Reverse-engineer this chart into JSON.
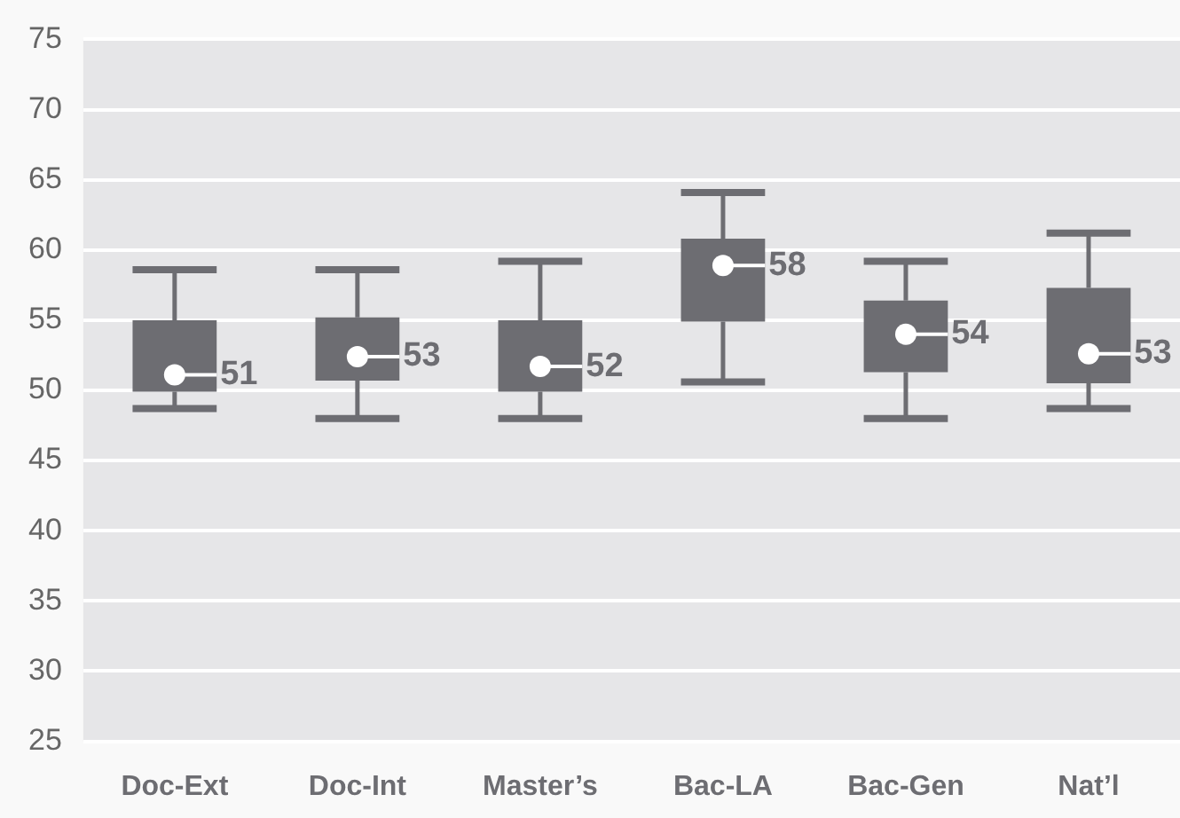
{
  "chart_data": {
    "type": "box",
    "categories": [
      "Doc-Ext",
      "Doc-Int",
      "Master’s",
      "Bac-LA",
      "Bac-Gen",
      "Nat’l"
    ],
    "color": "#6d6d72",
    "ylim": [
      25,
      75
    ],
    "yticks": [
      25,
      30,
      35,
      40,
      45,
      50,
      55,
      60,
      65,
      70,
      75
    ],
    "grid": "y",
    "legend": false,
    "boxes": [
      {
        "low": 48.7,
        "q1": 49.9,
        "median": 51.1,
        "q3": 55.0,
        "high": 58.6,
        "mean": 51.1
      },
      {
        "low": 48.0,
        "q1": 50.7,
        "median": 52.4,
        "q3": 55.2,
        "high": 58.6,
        "mean": 52.4
      },
      {
        "low": 48.0,
        "q1": 49.9,
        "median": 51.7,
        "q3": 55.0,
        "high": 59.2,
        "mean": 51.7
      },
      {
        "low": 50.6,
        "q1": 54.9,
        "median": 58.9,
        "q3": 60.8,
        "high": 64.1,
        "mean": 58.9
      },
      {
        "low": 48.0,
        "q1": 51.3,
        "median": 54.0,
        "q3": 56.4,
        "high": 59.2,
        "mean": 54.0
      },
      {
        "low": 48.7,
        "q1": 50.5,
        "median": 52.6,
        "q3": 57.3,
        "high": 61.2,
        "mean": 52.6
      }
    ],
    "value_labels": [
      "51",
      "53",
      "52",
      "58",
      "54",
      "53"
    ]
  }
}
